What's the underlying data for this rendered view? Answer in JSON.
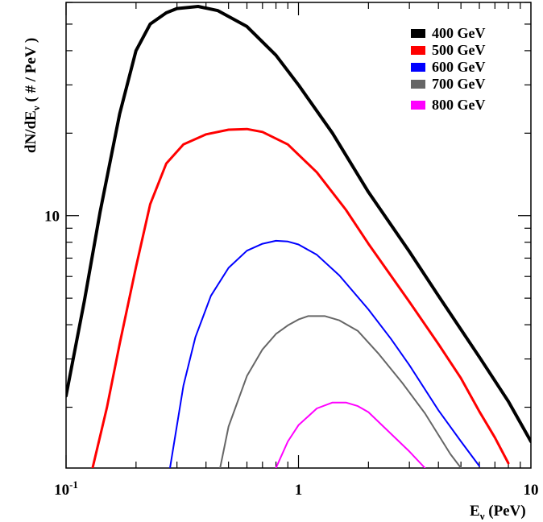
{
  "chart_data": {
    "type": "line",
    "xscale": "log",
    "yscale": "log",
    "xlim": [
      0.1,
      10
    ],
    "ylim": [
      1.2,
      60
    ],
    "xlabel": {
      "main": "E",
      "sub": "ν",
      "rest": " (PeV)"
    },
    "ylabel": {
      "main": "dN/dE",
      "sub": "ν",
      "rest": " ( # / PeV )"
    },
    "x_tick_labels": [
      {
        "value": 0.1,
        "base": "10",
        "exp": "-1"
      },
      {
        "value": 1,
        "base": "1",
        "exp": ""
      },
      {
        "value": 10,
        "base": "10",
        "exp": ""
      }
    ],
    "y_tick_labels": [
      {
        "value": 10,
        "label": "10"
      }
    ],
    "grid": false,
    "legend_position": "top-right",
    "series": [
      {
        "name": "400 GeV",
        "color": "#000000",
        "width": 4,
        "points": [
          [
            0.1,
            2.2
          ],
          [
            0.12,
            4.9
          ],
          [
            0.14,
            10.3
          ],
          [
            0.17,
            23.5
          ],
          [
            0.2,
            40
          ],
          [
            0.23,
            50
          ],
          [
            0.27,
            55
          ],
          [
            0.3,
            57
          ],
          [
            0.37,
            58
          ],
          [
            0.45,
            56
          ],
          [
            0.6,
            49
          ],
          [
            0.8,
            38.5
          ],
          [
            1.0,
            30
          ],
          [
            1.4,
            20
          ],
          [
            2.0,
            12.2
          ],
          [
            3.0,
            7.4
          ],
          [
            4.0,
            5.1
          ],
          [
            6.0,
            3.05
          ],
          [
            8.0,
            2.1
          ],
          [
            10.0,
            1.5
          ]
        ]
      },
      {
        "name": "500 GeV",
        "color": "#ff0000",
        "width": 3,
        "points": [
          [
            0.13,
            1.2
          ],
          [
            0.15,
            2.0
          ],
          [
            0.17,
            3.4
          ],
          [
            0.2,
            6.5
          ],
          [
            0.23,
            11
          ],
          [
            0.27,
            15.5
          ],
          [
            0.32,
            18.2
          ],
          [
            0.4,
            19.8
          ],
          [
            0.5,
            20.6
          ],
          [
            0.6,
            20.7
          ],
          [
            0.7,
            20.2
          ],
          [
            0.9,
            18.2
          ],
          [
            1.2,
            14.4
          ],
          [
            1.6,
            10.5
          ],
          [
            2.0,
            7.9
          ],
          [
            3.0,
            4.85
          ],
          [
            4.0,
            3.4
          ],
          [
            5.0,
            2.55
          ],
          [
            6.0,
            1.93
          ],
          [
            7.0,
            1.55
          ],
          [
            8.0,
            1.25
          ]
        ]
      },
      {
        "name": "600 GeV",
        "color": "#0000ff",
        "width": 2,
        "points": [
          [
            0.28,
            1.2
          ],
          [
            0.32,
            2.4
          ],
          [
            0.36,
            3.6
          ],
          [
            0.42,
            5.1
          ],
          [
            0.5,
            6.45
          ],
          [
            0.6,
            7.45
          ],
          [
            0.7,
            7.9
          ],
          [
            0.8,
            8.1
          ],
          [
            0.9,
            8.05
          ],
          [
            1.0,
            7.85
          ],
          [
            1.2,
            7.2
          ],
          [
            1.5,
            6.05
          ],
          [
            2.0,
            4.55
          ],
          [
            2.5,
            3.55
          ],
          [
            3.0,
            2.85
          ],
          [
            4.0,
            1.95
          ],
          [
            5.0,
            1.5
          ],
          [
            6.0,
            1.22
          ]
        ]
      },
      {
        "name": "700 GeV",
        "color": "#666666",
        "width": 2,
        "points": [
          [
            0.46,
            1.2
          ],
          [
            0.5,
            1.7
          ],
          [
            0.6,
            2.6
          ],
          [
            0.7,
            3.25
          ],
          [
            0.8,
            3.7
          ],
          [
            0.9,
            3.98
          ],
          [
            1.0,
            4.18
          ],
          [
            1.1,
            4.3
          ],
          [
            1.3,
            4.3
          ],
          [
            1.5,
            4.15
          ],
          [
            1.8,
            3.8
          ],
          [
            2.2,
            3.15
          ],
          [
            2.8,
            2.45
          ],
          [
            3.5,
            1.9
          ],
          [
            4.5,
            1.35
          ],
          [
            5.0,
            1.2
          ]
        ]
      },
      {
        "name": "800 GeV",
        "color": "#ff00ff",
        "width": 2,
        "points": [
          [
            0.8,
            1.2
          ],
          [
            0.9,
            1.5
          ],
          [
            1.0,
            1.72
          ],
          [
            1.2,
            1.98
          ],
          [
            1.4,
            2.08
          ],
          [
            1.6,
            2.08
          ],
          [
            1.8,
            2.02
          ],
          [
            2.0,
            1.92
          ],
          [
            2.5,
            1.6
          ],
          [
            3.0,
            1.38
          ],
          [
            3.5,
            1.2
          ]
        ]
      }
    ]
  }
}
